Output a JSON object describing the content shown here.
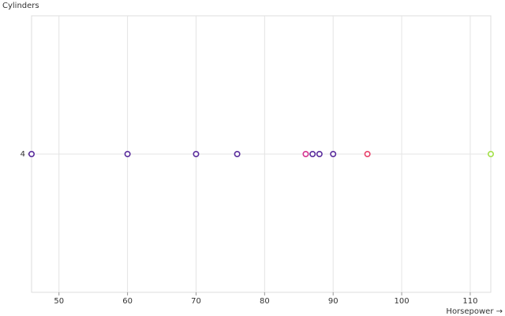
{
  "chart_data": {
    "type": "scatter",
    "x_label": "Horsepower →",
    "y_label": "Cylinders",
    "categories": [
      "4"
    ],
    "x": [
      46,
      60,
      70,
      76,
      86,
      87,
      88,
      90,
      95,
      113
    ],
    "colors": [
      "#5a2d9c",
      "#5a2d9c",
      "#5a2d9c",
      "#5a2d9c",
      "#d6338f",
      "#5a2d9c",
      "#5a2d9c",
      "#5a2d9c",
      "#e8416a",
      "#a3e048"
    ],
    "xlim": [
      46,
      113
    ],
    "xticks": [
      50,
      60,
      70,
      80,
      90,
      100,
      110
    ],
    "grid": true
  }
}
